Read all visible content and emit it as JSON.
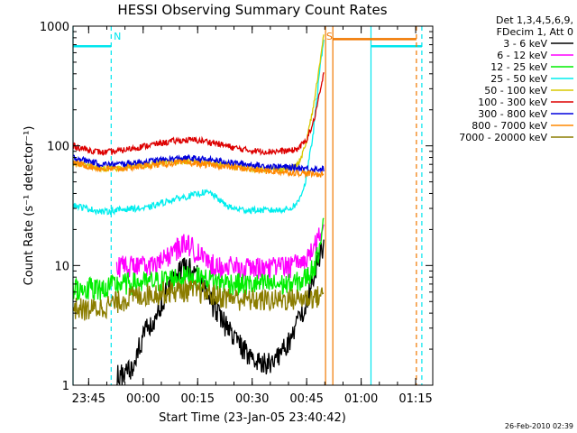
{
  "colors": {
    "background": "#ffffff",
    "axis": "#000000",
    "attenuator_marker": "#00e5ee",
    "saa_marker": "#f07800"
  },
  "chart_data": {
    "type": "line",
    "title": "HESSI Observing Summary Count Rates",
    "xlabel": "Start Time (23-Jan-05 23:40:42)",
    "ylabel": "Count Rate (s⁻¹ detector⁻¹)",
    "y_scale": "log",
    "ylim": [
      1,
      1000
    ],
    "x_units": "minutes after 23:40:42",
    "xlim": [
      0,
      99
    ],
    "y_ticks": [
      {
        "value": 1,
        "label": "1"
      },
      {
        "value": 10,
        "label": "10"
      },
      {
        "value": 100,
        "label": "100"
      },
      {
        "value": 1000,
        "label": "1000"
      }
    ],
    "x_ticks": [
      {
        "value": 4.3,
        "label": "23:45"
      },
      {
        "value": 19.3,
        "label": "00:00"
      },
      {
        "value": 34.3,
        "label": "00:15"
      },
      {
        "value": 49.3,
        "label": "00:30"
      },
      {
        "value": 64.3,
        "label": "00:45"
      },
      {
        "value": 79.3,
        "label": "01:00"
      },
      {
        "value": 94.3,
        "label": "01:15"
      }
    ],
    "x_minor_step": 5,
    "grid": false,
    "legend": {
      "position": "right",
      "header": [
        "Det 1,3,4,5,6,9,",
        "FDecim 1, Att 0"
      ],
      "entries": [
        {
          "label": "3 - 6 keV",
          "color": "#000000"
        },
        {
          "label": "6 - 12 keV",
          "color": "#ff00ff"
        },
        {
          "label": "12 - 25 keV",
          "color": "#00ee00"
        },
        {
          "label": "25 - 50 keV",
          "color": "#00eeee"
        },
        {
          "label": "50 - 100 keV",
          "color": "#d8c800"
        },
        {
          "label": "100 - 300 keV",
          "color": "#dd0000"
        },
        {
          "label": "300 - 800 keV",
          "color": "#0000dd"
        },
        {
          "label": "800 - 7000 keV",
          "color": "#ff8800"
        },
        {
          "label": "7000 - 20000 keV",
          "color": "#8b7d00"
        }
      ]
    },
    "series": [
      {
        "name": "3 - 6 keV",
        "color": "#000000",
        "x": [
          12,
          14,
          16,
          18,
          20,
          22,
          24,
          26,
          28,
          30,
          32,
          34,
          36,
          38,
          40,
          42,
          44,
          46,
          48,
          50,
          52,
          54,
          56,
          58,
          60,
          62,
          63.5,
          65,
          66,
          67,
          68,
          69
        ],
        "y": [
          1.2,
          1.3,
          1.4,
          2.0,
          3.0,
          3.5,
          4.5,
          6.5,
          8.0,
          9.5,
          10.0,
          8.5,
          6.5,
          5.0,
          4.0,
          3.2,
          2.6,
          2.2,
          1.9,
          1.7,
          1.5,
          1.6,
          1.7,
          2.0,
          2.5,
          3.5,
          4.5,
          6.0,
          8.0,
          10.0,
          12.5,
          15.0
        ]
      },
      {
        "name": "6 - 12 keV",
        "color": "#ff00ff",
        "x": [
          12,
          16,
          20,
          22,
          24,
          26,
          28,
          30,
          31,
          32,
          34,
          36,
          38,
          40,
          44,
          48,
          52,
          56,
          60,
          62,
          64,
          66,
          68,
          69
        ],
        "y": [
          10,
          10,
          10,
          10.2,
          10.5,
          12,
          13.5,
          15,
          16.5,
          15,
          13,
          11.5,
          10.5,
          10,
          9.8,
          9.6,
          9.6,
          9.8,
          10,
          10.5,
          11.5,
          13.5,
          18,
          22
        ]
      },
      {
        "name": "12 - 25 keV",
        "color": "#00ee00",
        "x": [
          0,
          4,
          8,
          12,
          16,
          20,
          24,
          28,
          32,
          36,
          40,
          44,
          48,
          52,
          56,
          60,
          63,
          65,
          67,
          68,
          69
        ],
        "y": [
          6.5,
          6.5,
          6.5,
          7.0,
          7.2,
          7.2,
          7.5,
          8.0,
          8.2,
          7.8,
          7.4,
          7.2,
          7.0,
          7.0,
          7.0,
          7.0,
          7.5,
          8.5,
          11,
          16,
          26
        ]
      },
      {
        "name": "25 - 50 keV",
        "color": "#00eeee",
        "x": [
          0,
          4,
          8,
          12,
          16,
          20,
          24,
          28,
          32,
          36,
          38,
          40,
          42,
          44,
          48,
          52,
          56,
          60,
          62,
          64,
          66,
          68,
          69
        ],
        "y": [
          32,
          30,
          28,
          29,
          30,
          30,
          33,
          36,
          38,
          41,
          40,
          36,
          32,
          30,
          29,
          29,
          29,
          30,
          34,
          50,
          120,
          450,
          800
        ]
      },
      {
        "name": "50 - 100 keV",
        "color": "#d8c800",
        "x": [
          0,
          4,
          8,
          12,
          16,
          20,
          24,
          28,
          32,
          36,
          40,
          44,
          48,
          52,
          56,
          60,
          62,
          64,
          66,
          68,
          69
        ],
        "y": [
          72,
          68,
          64,
          65,
          68,
          70,
          72,
          74,
          74,
          72,
          70,
          67,
          65,
          64,
          64,
          65,
          70,
          100,
          200,
          500,
          850
        ]
      },
      {
        "name": "100 - 300 keV",
        "color": "#dd0000",
        "x": [
          0,
          4,
          8,
          12,
          16,
          20,
          24,
          28,
          32,
          36,
          40,
          44,
          48,
          52,
          56,
          60,
          62,
          64,
          66,
          68,
          69
        ],
        "y": [
          100,
          93,
          88,
          90,
          95,
          100,
          105,
          110,
          112,
          110,
          104,
          97,
          92,
          90,
          90,
          91,
          95,
          110,
          150,
          280,
          400
        ]
      },
      {
        "name": "300 - 800 keV",
        "color": "#0000dd",
        "x": [
          0,
          4,
          8,
          12,
          16,
          20,
          24,
          28,
          32,
          36,
          40,
          44,
          48,
          52,
          56,
          60,
          64,
          66,
          68,
          69
        ],
        "y": [
          80,
          75,
          70,
          70,
          72,
          74,
          76,
          78,
          79,
          77,
          75,
          72,
          70,
          68,
          67,
          66,
          65,
          64,
          64,
          64
        ]
      },
      {
        "name": "800 - 7000 keV",
        "color": "#ff8800",
        "x": [
          0,
          4,
          8,
          12,
          16,
          20,
          24,
          28,
          32,
          36,
          40,
          44,
          48,
          52,
          56,
          60,
          64,
          66,
          68,
          69
        ],
        "y": [
          72,
          68,
          64,
          64,
          66,
          68,
          70,
          72,
          72,
          70,
          68,
          66,
          64,
          62,
          61,
          60,
          59,
          58,
          58,
          58
        ]
      },
      {
        "name": "7000 - 20000 keV",
        "color": "#8b7d00",
        "x": [
          0,
          4,
          8,
          12,
          16,
          20,
          24,
          28,
          32,
          36,
          40,
          44,
          48,
          52,
          56,
          60,
          64,
          66,
          68,
          69
        ],
        "y": [
          4.5,
          4.3,
          4.5,
          5.0,
          5.5,
          5.8,
          6.0,
          6.2,
          6.3,
          6.0,
          5.6,
          5.4,
          5.2,
          5.2,
          5.2,
          5.3,
          5.4,
          5.5,
          5.6,
          5.8
        ]
      }
    ],
    "annotations": {
      "attenuator_lines": [
        {
          "x": 0,
          "style": "solid"
        },
        {
          "x": 10.5,
          "style": "dashed"
        },
        {
          "x": 82,
          "style": "solid"
        },
        {
          "x": 96,
          "style": "dashed"
        }
      ],
      "attenuator_level": 680,
      "attenuator_bars": [
        [
          0,
          10.5
        ],
        [
          82,
          96
        ]
      ],
      "saa_lines": [
        {
          "x": 69.5,
          "style": "solid"
        },
        {
          "x": 71.5,
          "style": "solid"
        },
        {
          "x": 94.5,
          "style": "dashed"
        }
      ],
      "saa_level": 780,
      "saa_bar": [
        71.5,
        94.5
      ],
      "flags": [
        {
          "label": "N",
          "x": 11.2,
          "color": "#00e5ee"
        },
        {
          "label": "S",
          "x": 69.7,
          "color": "#f07800"
        }
      ]
    }
  },
  "footer_timestamp": "26-Feb-2010 02:39"
}
